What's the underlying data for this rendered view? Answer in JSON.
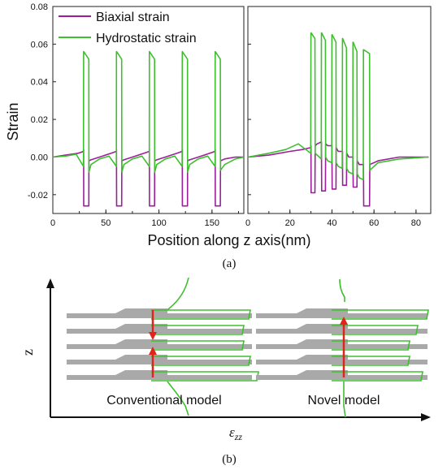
{
  "chart_data": [
    {
      "type": "line",
      "xlabel": "Position along z axis(nm)",
      "ylabel": "Strain",
      "ylim": [
        -0.03,
        0.08
      ],
      "yticks": [
        "0.08",
        "0.06",
        "0.04",
        "0.02",
        "0.00",
        "-0.02"
      ],
      "panels": [
        {
          "id": "left",
          "xlim": [
            0,
            180
          ],
          "xticks": [
            "0",
            "50",
            "100",
            "150"
          ],
          "series": [
            {
              "name": "Biaxial strain",
              "color": "#9b1f9b",
              "x": [
                0,
                12,
                24,
                28.9,
                29,
                29.1,
                33.9,
                34,
                36,
                44,
                55,
                59.9,
                60,
                60.1,
                64.9,
                65,
                67,
                75,
                86,
                90.9,
                91,
                91.1,
                95.9,
                96,
                98,
                106,
                117,
                121.9,
                122,
                122.1,
                126.9,
                127,
                129,
                137,
                148,
                152.9,
                153,
                153.1,
                157.9,
                158,
                162,
                172,
                180
              ],
              "y": [
                0.0,
                0.001,
                0.002,
                0.003,
                0.004,
                -0.026,
                -0.026,
                -0.002,
                -0.0015,
                0.0,
                0.002,
                0.003,
                0.004,
                -0.026,
                -0.026,
                -0.002,
                -0.0015,
                0.0,
                0.002,
                0.003,
                0.004,
                -0.026,
                -0.026,
                -0.002,
                -0.0015,
                0.0,
                0.002,
                0.003,
                0.004,
                -0.026,
                -0.026,
                -0.002,
                -0.0015,
                0.0,
                0.002,
                0.003,
                0.004,
                -0.026,
                -0.026,
                -0.002,
                -0.001,
                0.0,
                0.0
              ]
            },
            {
              "name": "Hydrostatic strain",
              "color": "#3fbf2f",
              "x": [
                0,
                12,
                22,
                28.9,
                29,
                29.1,
                33.9,
                34,
                36,
                44,
                53,
                59.9,
                60,
                60.1,
                64.9,
                65,
                67,
                75,
                84,
                90.9,
                91,
                91.1,
                95.9,
                96,
                98,
                106,
                115,
                121.9,
                122,
                122.1,
                126.9,
                127,
                129,
                137,
                146,
                152.9,
                153,
                153.1,
                157.9,
                158,
                162,
                172,
                180
              ],
              "y": [
                0.0,
                0.0005,
                0.0015,
                -0.005,
                0.056,
                0.056,
                0.052,
                -0.008,
                -0.004,
                -0.001,
                0.0005,
                -0.005,
                0.056,
                0.056,
                0.052,
                -0.008,
                -0.004,
                -0.001,
                0.0005,
                -0.005,
                0.056,
                0.056,
                0.052,
                -0.008,
                -0.004,
                -0.001,
                0.0005,
                -0.005,
                0.056,
                0.056,
                0.052,
                -0.008,
                -0.004,
                -0.001,
                0.0005,
                -0.005,
                0.056,
                0.056,
                0.052,
                -0.007,
                -0.004,
                -0.001,
                0.0
              ]
            }
          ]
        },
        {
          "id": "right",
          "xlim": [
            0,
            87
          ],
          "xticks": [
            "0",
            "20",
            "40",
            "60",
            "80"
          ],
          "series": [
            {
              "name": "Biaxial strain",
              "color": "#9b1f9b",
              "x": [
                0,
                10,
                20,
                26,
                29.9,
                30,
                30.1,
                31.9,
                32,
                33,
                34.9,
                35,
                35.1,
                36.9,
                37,
                38,
                39.9,
                40,
                40.1,
                41.9,
                42,
                43,
                44.9,
                45,
                45.1,
                46.9,
                47,
                48,
                49.9,
                50,
                50.1,
                51.9,
                52,
                53,
                54.9,
                55,
                55.1,
                57.9,
                58,
                62,
                72,
                86
              ],
              "y": [
                0.0,
                0.001,
                0.003,
                0.004,
                0.005,
                0.006,
                -0.019,
                -0.019,
                0.006,
                0.007,
                0.008,
                0.008,
                -0.018,
                -0.018,
                0.007,
                0.006,
                0.006,
                0.006,
                -0.017,
                -0.017,
                0.005,
                0.003,
                0.003,
                0.003,
                -0.015,
                -0.015,
                0.002,
                0.0,
                0.0,
                0.0,
                -0.016,
                -0.016,
                -0.002,
                -0.004,
                -0.004,
                -0.004,
                -0.026,
                -0.026,
                -0.004,
                -0.002,
                0.0,
                0.0
              ]
            },
            {
              "name": "Hydrostatic strain",
              "color": "#3fbf2f",
              "x": [
                0,
                10,
                18,
                24,
                29.9,
                30,
                30.1,
                31.9,
                32,
                33,
                34.9,
                35,
                35.1,
                36.9,
                37,
                38,
                39.9,
                40,
                40.1,
                41.9,
                42,
                43,
                44.9,
                45,
                45.1,
                46.9,
                47,
                48,
                49.9,
                50,
                50.1,
                51.9,
                52,
                53,
                54.9,
                55,
                55.1,
                57.9,
                58,
                62,
                72,
                86
              ],
              "y": [
                0.0,
                0.002,
                0.004,
                0.007,
                0.002,
                0.066,
                0.066,
                0.063,
                0.002,
                0.001,
                -0.001,
                0.066,
                0.066,
                0.062,
                0.0,
                -0.002,
                -0.003,
                0.065,
                0.065,
                0.061,
                -0.003,
                -0.005,
                -0.006,
                0.063,
                0.063,
                0.058,
                -0.006,
                -0.008,
                -0.009,
                0.061,
                0.061,
                0.056,
                -0.009,
                -0.011,
                -0.012,
                0.057,
                0.057,
                0.055,
                -0.007,
                -0.003,
                -0.001,
                0.0
              ]
            }
          ]
        }
      ],
      "legend": [
        "Biaxial strain",
        "Hydrostatic strain"
      ],
      "legend_position": "top-left",
      "caption": "(a)"
    },
    {
      "type": "diagram",
      "xlabel": "εzz",
      "ylabel": "z",
      "models": [
        {
          "label": "Conventional model",
          "arrows": "red arrows pointing toward center"
        },
        {
          "label": "Novel model",
          "arrows": "red arrow pointing up"
        }
      ],
      "layers": 5,
      "caption": "(b)"
    }
  ],
  "labels": {
    "ylabel": "Strain",
    "xlabel": "Position along z axis(nm)",
    "legend_biaxial": "Biaxial strain",
    "legend_hydro": "Hydrostatic strain",
    "caption_a": "(a)",
    "caption_b": "(b)",
    "diag_z": "z",
    "diag_ezz_main": "ε",
    "diag_ezz_sub": "zz",
    "model_conventional": "Conventional model",
    "model_novel": "Novel model"
  },
  "colors": {
    "biaxial": "#9b1f9b",
    "hydrostatic": "#3fbf2f",
    "layer": "#a9a9a9",
    "arrow": "#e3221c"
  }
}
